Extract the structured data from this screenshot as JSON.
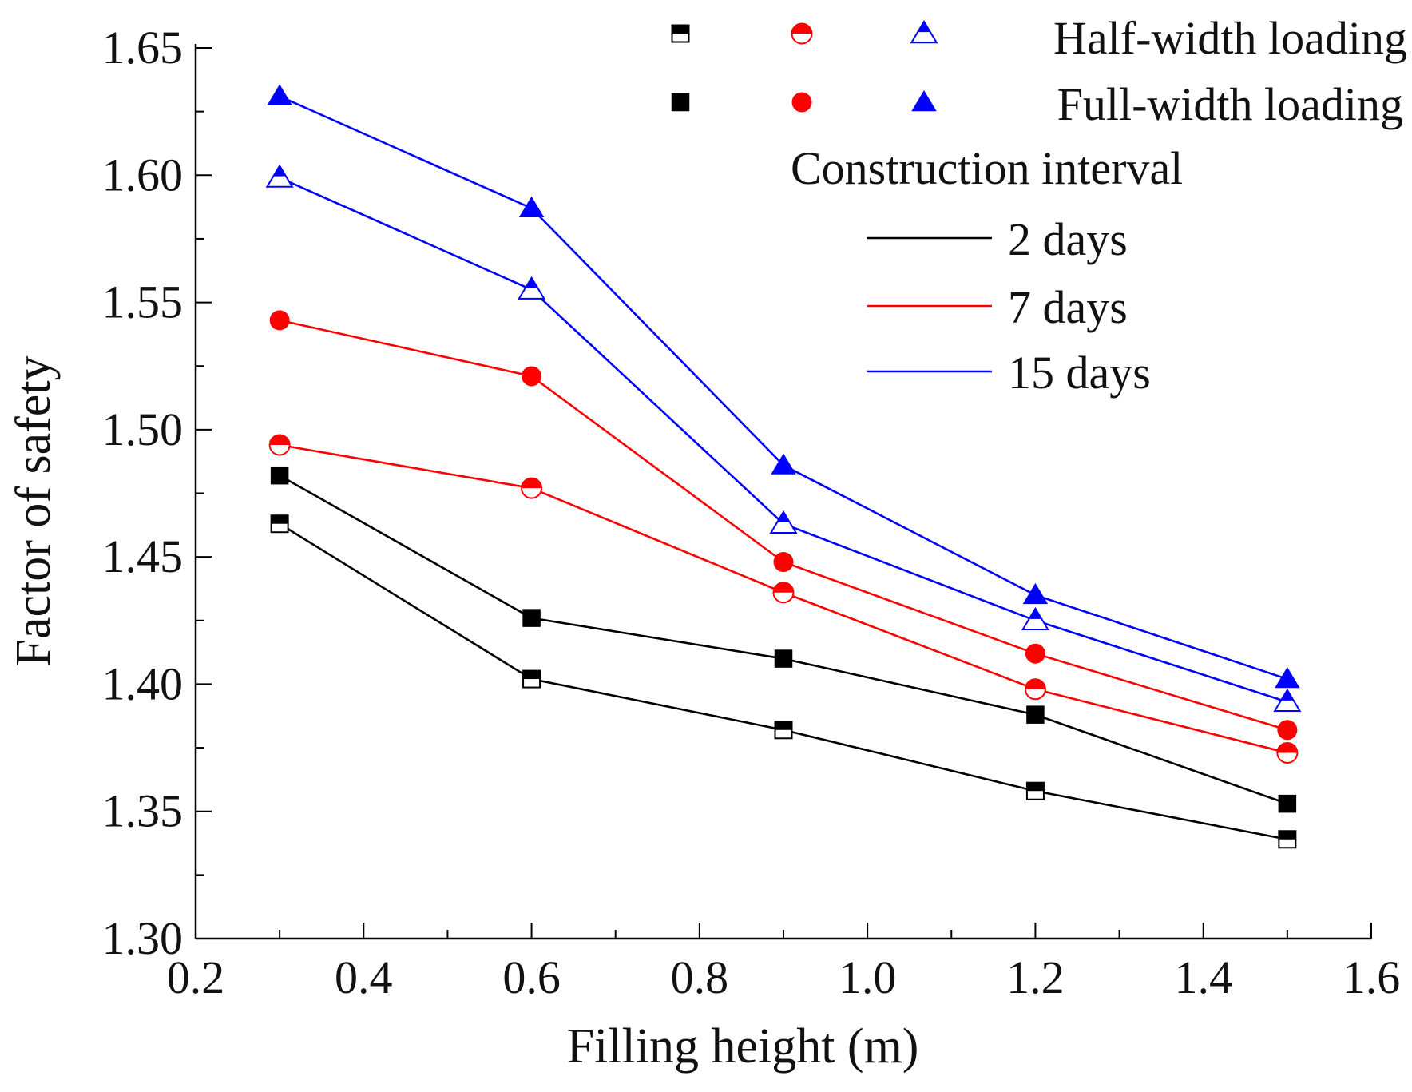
{
  "chart_data": {
    "type": "line",
    "xlabel": "Filling height (m)",
    "ylabel": "Factor of safety",
    "xlim": [
      0.2,
      1.6
    ],
    "ylim": [
      1.3,
      1.65
    ],
    "x_ticks": [
      "0.2",
      "0.4",
      "0.6",
      "0.8",
      "1.0",
      "1.2",
      "1.4",
      "1.6"
    ],
    "y_ticks": [
      "1.30",
      "1.35",
      "1.40",
      "1.45",
      "1.50",
      "1.55",
      "1.60",
      "1.65"
    ],
    "x": [
      0.3,
      0.6,
      0.9,
      1.2,
      1.5
    ],
    "series": [
      {
        "name": "2 days, Half-width loading",
        "interval": "2 days",
        "loading": "Half-width loading",
        "marker": "square",
        "filled": false,
        "color": "#000000",
        "values": [
          1.463,
          1.402,
          1.382,
          1.358,
          1.339
        ]
      },
      {
        "name": "2 days, Full-width loading",
        "interval": "2 days",
        "loading": "Full-width loading",
        "marker": "square",
        "filled": true,
        "color": "#000000",
        "values": [
          1.482,
          1.426,
          1.41,
          1.388,
          1.353
        ]
      },
      {
        "name": "7 days, Half-width loading",
        "interval": "7 days",
        "loading": "Half-width loading",
        "marker": "circle",
        "filled": false,
        "color": "#ff0000",
        "values": [
          1.494,
          1.477,
          1.436,
          1.398,
          1.373
        ]
      },
      {
        "name": "7 days, Full-width loading",
        "interval": "7 days",
        "loading": "Full-width loading",
        "marker": "circle",
        "filled": true,
        "color": "#ff0000",
        "values": [
          1.543,
          1.521,
          1.448,
          1.412,
          1.382
        ]
      },
      {
        "name": "15 days, Half-width loading",
        "interval": "15 days",
        "loading": "Half-width loading",
        "marker": "triangle",
        "filled": false,
        "color": "#0000ff",
        "values": [
          1.599,
          1.555,
          1.463,
          1.425,
          1.393
        ]
      },
      {
        "name": "15 days, Full-width loading",
        "interval": "15 days",
        "loading": "Full-width loading",
        "marker": "triangle",
        "filled": true,
        "color": "#0000ff",
        "values": [
          1.631,
          1.587,
          1.486,
          1.435,
          1.402
        ]
      }
    ],
    "legend": {
      "placement": "top-right",
      "half_label": "Half-width loading",
      "full_label": "Full-width loading",
      "interval_title": "Construction interval",
      "intervals": [
        {
          "label": "2 days",
          "color": "#000000"
        },
        {
          "label": "7 days",
          "color": "#ff0000"
        },
        {
          "label": "15 days",
          "color": "#0000ff"
        }
      ]
    }
  }
}
